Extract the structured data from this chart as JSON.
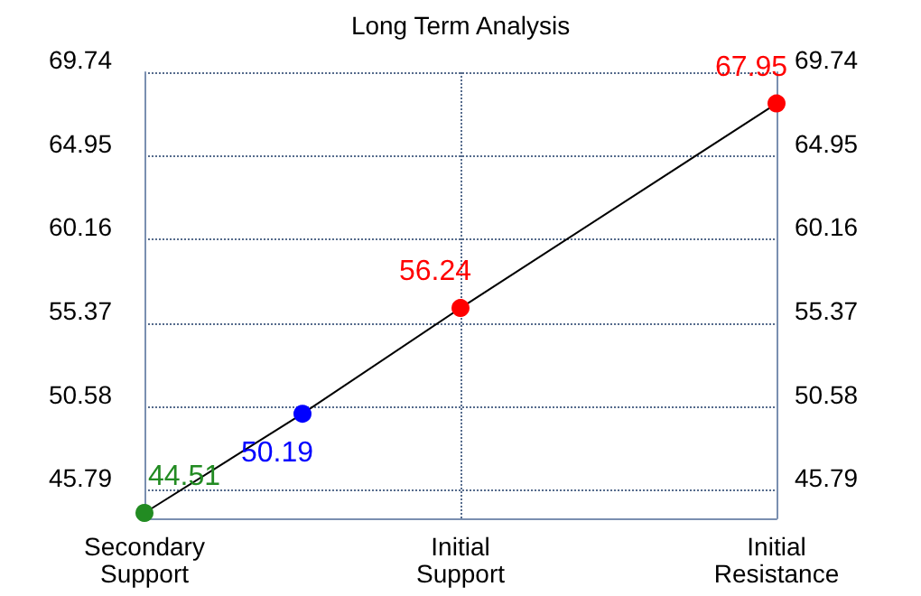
{
  "chart_data": {
    "type": "line",
    "title": "Long Term Analysis",
    "categories": [
      "Secondary Support",
      null,
      "Initial Support",
      null,
      "Initial Resistance"
    ],
    "ylim": [
      44.2,
      69.74
    ],
    "yticks": [
      45.79,
      50.58,
      55.37,
      60.16,
      64.95,
      69.74
    ],
    "y2lim": [
      44.2,
      69.74
    ],
    "y2ticks": [
      45.79,
      50.58,
      55.37,
      60.16,
      64.95,
      69.74
    ],
    "series": [
      {
        "color": "#000000",
        "values": [
          44.51,
          50.19,
          56.24,
          null,
          67.95
        ],
        "colors": [
          "#228b22",
          "#0000ff",
          "#ff0000",
          null,
          "#ff0000"
        ]
      }
    ],
    "data_labels": true,
    "grid": true,
    "marker": "circle",
    "line_style": "solid"
  }
}
